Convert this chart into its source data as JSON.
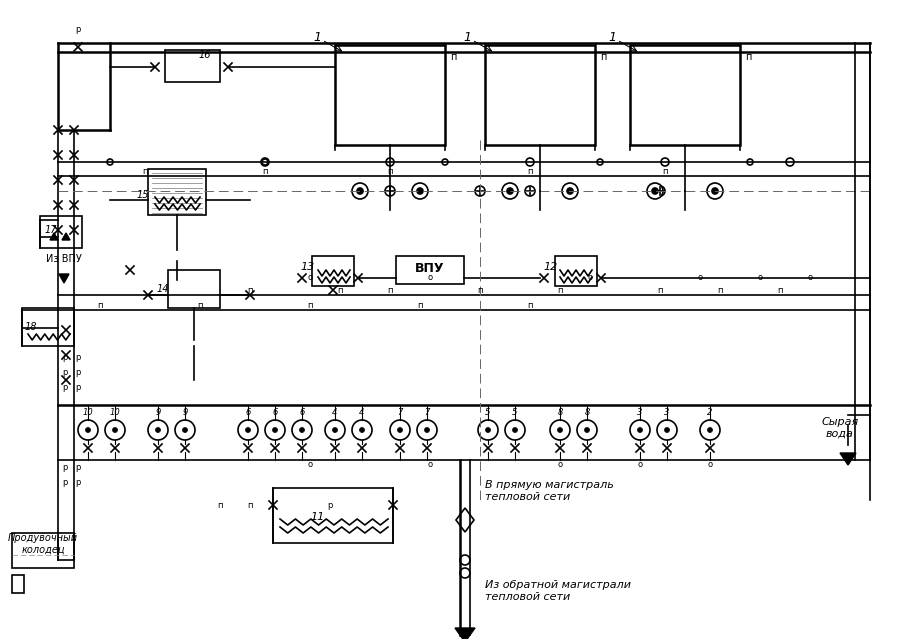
{
  "title": "",
  "bg_color": "#ffffff",
  "line_color": "#000000",
  "lw": 1.2,
  "labels": {
    "prod_well": "Продувочный\nколодец",
    "raw_water": "Сырая\nвода",
    "to_direct": "В прямую магистраль\nтепловой сети",
    "from_return": "Из обратной магистрали\nтепловой сети",
    "from_vpu": "Из ВПУ",
    "vpu": "ВПУ"
  }
}
